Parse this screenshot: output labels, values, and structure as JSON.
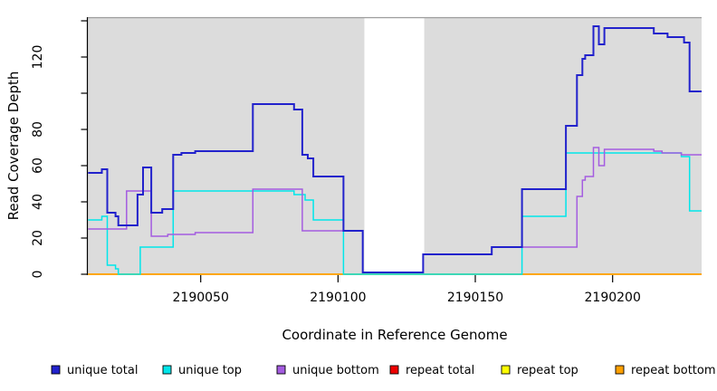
{
  "figure": {
    "background": "#ffffff"
  },
  "chart_data": {
    "type": "line",
    "subtype": "step-after",
    "title": "",
    "xlabel": "Coordinate in Reference Genome",
    "ylabel": "Read Coverage Depth",
    "xlim": [
      2190008.9,
      2190232.4
    ],
    "ylim": [
      0,
      141.5
    ],
    "grid": false,
    "legend_position": "bottom",
    "plot_bg_color": "#dcdcdc",
    "shaded_regions": [
      [
        2190008.9,
        2190109.6
      ],
      [
        2190131.4,
        2190232.4
      ]
    ],
    "x_ticks": {
      "values": [
        2190050,
        2190100,
        2190150,
        2190200
      ],
      "labels": [
        "2190050",
        "2190100",
        "2190150",
        "2190200"
      ]
    },
    "y_ticks": {
      "values": [
        0,
        20,
        40,
        60,
        80,
        100,
        120,
        140
      ],
      "labels": [
        "0",
        "20",
        "40",
        "60",
        "80",
        "",
        "120",
        ""
      ]
    },
    "series": [
      {
        "key": "unique-total",
        "label": "unique total",
        "color": "#2222cc",
        "z": 6,
        "width": 2,
        "points": [
          [
            2190009,
            56
          ],
          [
            2190014,
            58
          ],
          [
            2190016,
            34
          ],
          [
            2190019,
            32
          ],
          [
            2190020,
            27
          ],
          [
            2190027,
            44
          ],
          [
            2190029,
            59
          ],
          [
            2190032,
            34
          ],
          [
            2190036,
            36
          ],
          [
            2190040,
            66
          ],
          [
            2190043,
            67
          ],
          [
            2190048,
            68
          ],
          [
            2190069,
            94
          ],
          [
            2190084,
            91
          ],
          [
            2190087,
            66
          ],
          [
            2190089,
            64
          ],
          [
            2190091,
            54
          ],
          [
            2190102,
            24
          ],
          [
            2190109,
            1
          ],
          [
            2190131,
            11
          ],
          [
            2190156,
            15
          ],
          [
            2190167,
            47
          ],
          [
            2190183,
            82
          ],
          [
            2190187,
            110
          ],
          [
            2190189,
            119
          ],
          [
            2190190,
            121
          ],
          [
            2190193,
            137
          ],
          [
            2190195,
            127
          ],
          [
            2190197,
            136
          ],
          [
            2190215,
            133
          ],
          [
            2190220,
            131
          ],
          [
            2190226,
            128
          ],
          [
            2190228,
            101
          ]
        ]
      },
      {
        "key": "unique-top",
        "label": "unique top",
        "color": "#00e6ea",
        "z": 4,
        "width": 1.5,
        "points": [
          [
            2190009,
            30
          ],
          [
            2190014,
            32
          ],
          [
            2190016,
            5
          ],
          [
            2190019,
            3
          ],
          [
            2190020,
            0
          ],
          [
            2190028,
            15
          ],
          [
            2190040,
            46
          ],
          [
            2190084,
            44
          ],
          [
            2190088,
            41
          ],
          [
            2190091,
            30
          ],
          [
            2190102,
            0
          ],
          [
            2190167,
            32
          ],
          [
            2190183,
            67
          ],
          [
            2190225,
            65
          ],
          [
            2190228,
            35
          ]
        ]
      },
      {
        "key": "unique-bottom",
        "label": "unique bottom",
        "color": "#a45ce0",
        "z": 5,
        "width": 1.5,
        "points": [
          [
            2190009,
            25
          ],
          [
            2190023,
            46
          ],
          [
            2190032,
            21
          ],
          [
            2190038,
            22
          ],
          [
            2190048,
            23
          ],
          [
            2190069,
            47
          ],
          [
            2190087,
            24
          ],
          [
            2190109,
            1
          ],
          [
            2190131,
            11
          ],
          [
            2190156,
            15
          ],
          [
            2190187,
            43
          ],
          [
            2190189,
            52
          ],
          [
            2190190,
            54
          ],
          [
            2190193,
            70
          ],
          [
            2190195,
            60
          ],
          [
            2190197,
            69
          ],
          [
            2190215,
            68
          ],
          [
            2190218,
            67
          ],
          [
            2190225,
            66
          ]
        ]
      },
      {
        "key": "repeat-total",
        "label": "repeat total",
        "color": "#ee0000",
        "z": 1,
        "width": 1.5,
        "points": [
          [
            2190009,
            0
          ]
        ]
      },
      {
        "key": "repeat-top",
        "label": "repeat top",
        "color": "#ffff00",
        "z": 2,
        "width": 1.5,
        "points": [
          [
            2190009,
            0
          ]
        ]
      },
      {
        "key": "repeat-bottom",
        "label": "repeat bottom",
        "color": "#ffa000",
        "z": 3,
        "width": 1.5,
        "points": [
          [
            2190009,
            0
          ]
        ]
      }
    ]
  }
}
